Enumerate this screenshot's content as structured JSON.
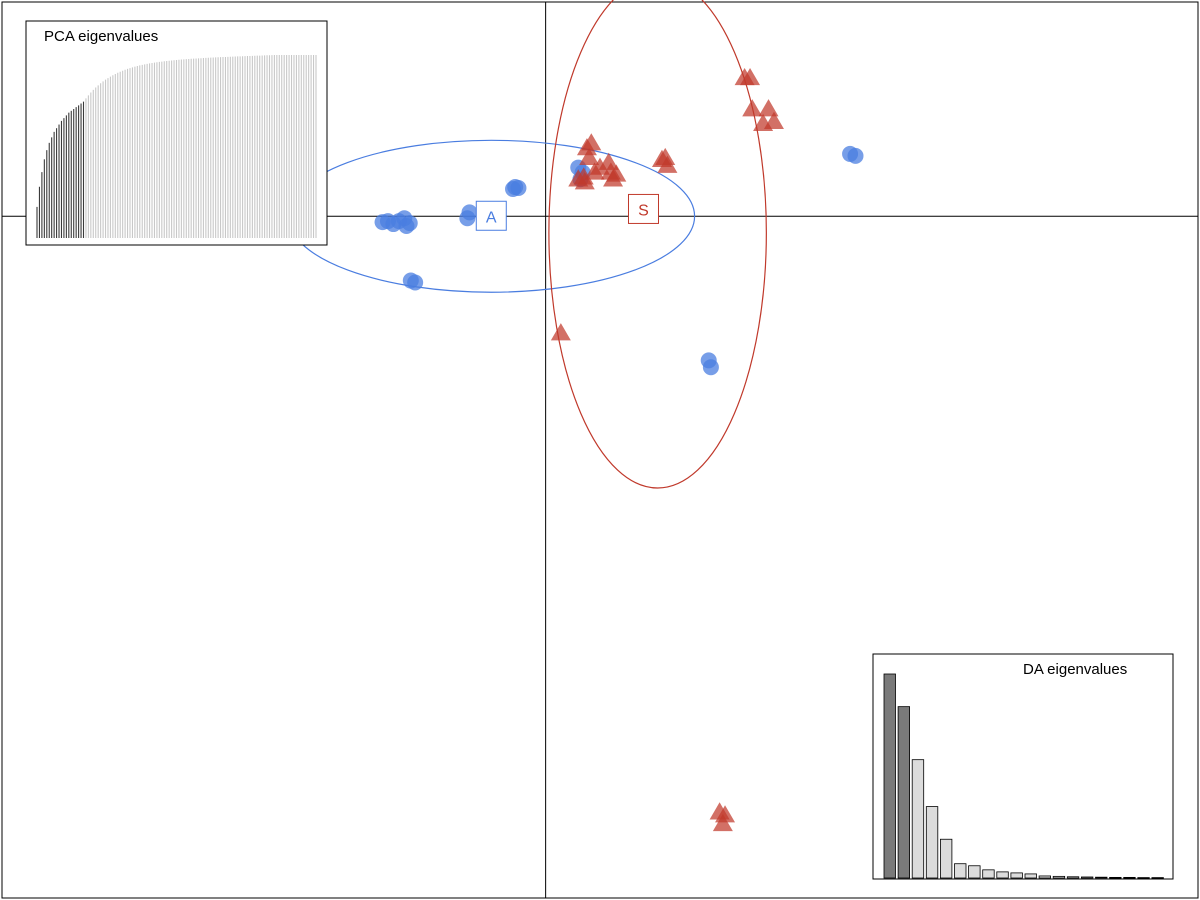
{
  "chart_data": {
    "type": "scatter",
    "title": "",
    "xlabel": "",
    "ylabel": "",
    "xlim": [
      -5.0,
      6.0
    ],
    "ylim": [
      -7.0,
      2.2
    ],
    "grid": false,
    "colors": {
      "A": "#4a7de0",
      "S": "#c0392b"
    },
    "groups": [
      {
        "label": "A",
        "marker": "circle",
        "color": "#4a7de0",
        "centroid": [
          -0.5,
          0.0
        ],
        "ellipse": {
          "cx": -0.5,
          "cy": 0.0,
          "rx": 1.87,
          "ry": 0.78,
          "angle": 0
        },
        "points": [
          [
            -1.5,
            -0.06
          ],
          [
            -1.45,
            -0.05
          ],
          [
            -1.4,
            -0.08
          ],
          [
            -1.35,
            -0.05
          ],
          [
            -1.3,
            -0.02
          ],
          [
            -1.28,
            -0.1
          ],
          [
            -1.25,
            -0.07
          ],
          [
            -0.72,
            -0.02
          ],
          [
            -0.7,
            0.04
          ],
          [
            -0.3,
            0.28
          ],
          [
            -0.28,
            0.3
          ],
          [
            -0.25,
            0.29
          ],
          [
            0.3,
            0.5
          ],
          [
            0.32,
            0.38
          ],
          [
            0.34,
            0.45
          ],
          [
            2.8,
            0.64
          ],
          [
            2.85,
            0.62
          ],
          [
            -1.24,
            -0.66
          ],
          [
            -1.2,
            -0.68
          ],
          [
            1.5,
            -1.48
          ],
          [
            1.52,
            -1.55
          ]
        ]
      },
      {
        "label": "S",
        "marker": "triangle",
        "color": "#c0392b",
        "centroid": [
          0.9,
          0.07
        ],
        "ellipse": {
          "cx": 1.03,
          "cy": -0.17,
          "rx": 1.0,
          "ry": 2.62,
          "angle": 0
        },
        "points": [
          [
            0.38,
            0.7
          ],
          [
            0.42,
            0.75
          ],
          [
            0.4,
            0.6
          ],
          [
            0.3,
            0.38
          ],
          [
            0.35,
            0.4
          ],
          [
            0.36,
            0.35
          ],
          [
            0.45,
            0.45
          ],
          [
            0.5,
            0.5
          ],
          [
            0.6,
            0.45
          ],
          [
            0.62,
            0.38
          ],
          [
            0.65,
            0.43
          ],
          [
            0.58,
            0.55
          ],
          [
            1.1,
            0.6
          ],
          [
            1.12,
            0.52
          ],
          [
            1.07,
            0.58
          ],
          [
            1.83,
            1.42
          ],
          [
            1.88,
            1.42
          ],
          [
            1.9,
            1.1
          ],
          [
            2.05,
            1.1
          ],
          [
            2.0,
            0.95
          ],
          [
            2.1,
            0.97
          ],
          [
            0.14,
            -1.2
          ],
          [
            1.6,
            -6.12
          ],
          [
            1.65,
            -6.15
          ],
          [
            1.63,
            -6.24
          ]
        ]
      }
    ],
    "insets": [
      {
        "title": "PCA eigenvalues",
        "type": "bar",
        "position": "top-left",
        "n_bars": 115,
        "n_retained": 20,
        "cumulative_fraction": [
          0.17,
          0.28,
          0.36,
          0.43,
          0.48,
          0.52,
          0.55,
          0.58,
          0.6,
          0.62,
          0.64,
          0.655,
          0.67,
          0.685,
          0.695,
          0.705,
          0.715,
          0.725,
          0.735,
          0.745
        ]
      },
      {
        "title": "DA eigenvalues",
        "type": "bar",
        "position": "bottom-right",
        "n_retained": 2,
        "values": [
          100,
          84,
          58,
          35,
          19,
          7,
          6,
          4,
          3,
          2.5,
          2,
          1,
          0.8,
          0.6,
          0.5,
          0.4,
          0.3,
          0.3,
          0.2,
          0.2
        ]
      }
    ]
  }
}
